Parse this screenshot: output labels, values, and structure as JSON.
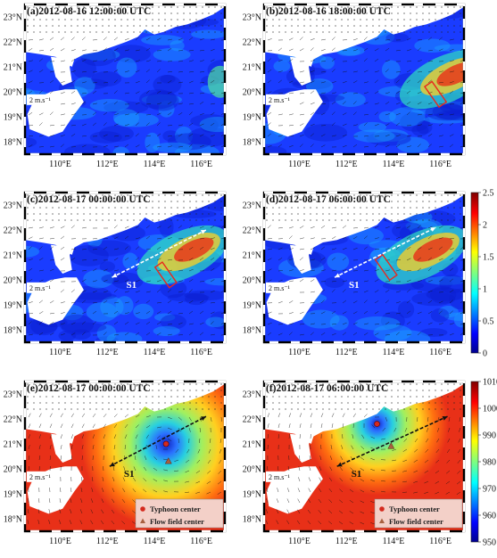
{
  "panels": [
    {
      "label": "(a)2012-08-16 12:00:00 UTC",
      "kind": "current",
      "scale_label": "2 m.s⁻¹",
      "has_box": false,
      "has_arrow": false,
      "section_label": ""
    },
    {
      "label": "(b)2012-08-16 18:00:00 UTC",
      "kind": "current",
      "scale_label": "2 m.s⁻¹",
      "has_box": true,
      "has_arrow": false,
      "section_label": ""
    },
    {
      "label": "(c)2012-08-17 00:00:00 UTC",
      "kind": "current",
      "scale_label": "2 m.s⁻¹",
      "has_box": true,
      "has_arrow": true,
      "section_label": "S1"
    },
    {
      "label": "(d)2012-08-17 06:00:00 UTC",
      "kind": "current",
      "scale_label": "2 m.s⁻¹",
      "has_box": true,
      "has_arrow": true,
      "section_label": "S1"
    },
    {
      "label": "(e)2012-08-17 00:00:00 UTC",
      "kind": "pressure",
      "scale_label": "2 m.s⁻¹",
      "has_box": false,
      "has_arrow": true,
      "section_label": "S1",
      "typhoon_center": [
        114.5,
        21.0
      ],
      "flow_center": [
        114.6,
        20.3
      ]
    },
    {
      "label": "(f)2012-08-17 06:00:00 UTC",
      "kind": "pressure",
      "scale_label": "2 m.s⁻¹",
      "has_box": false,
      "has_arrow": true,
      "section_label": "S1",
      "typhoon_center": [
        113.3,
        21.8
      ],
      "flow_center": [
        113.9,
        20.9
      ]
    }
  ],
  "axes": {
    "lon_ticks": [
      "110°E",
      "112°E",
      "114°E",
      "116°E"
    ],
    "lon_values": [
      110,
      112,
      114,
      116
    ],
    "lat_ticks": [
      "23°N",
      "22°N",
      "21°N",
      "20°N",
      "19°N",
      "18°N"
    ],
    "lat_values": [
      23,
      22,
      21,
      20,
      19,
      18
    ],
    "lon_range": [
      108.5,
      117.0
    ],
    "lat_range": [
      17.5,
      23.5
    ]
  },
  "colorbar_speed": {
    "ticks": [
      "2.5",
      "2",
      "1.5",
      "1",
      "0.5",
      "0"
    ],
    "range": [
      0,
      2.5
    ]
  },
  "colorbar_pressure": {
    "ticks": [
      "1010",
      "1000",
      "990",
      "980",
      "970",
      "960",
      "950"
    ],
    "range": [
      950,
      1010
    ]
  },
  "legend": {
    "typhoon_center": "Typhoon center",
    "flow_center": "Flow field center"
  },
  "colors": {
    "land": "#ffffff",
    "box": "#e8281e",
    "typhoon_marker": "#d42a1e",
    "flow_marker": "#a86040"
  }
}
